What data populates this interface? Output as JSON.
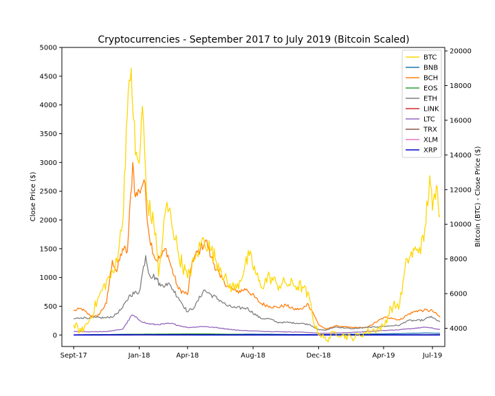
{
  "chart_data": {
    "type": "line",
    "title": "Cryptocurrencies - September 2017 to July 2019 (Bitcoin Scaled)",
    "ylabel": "Close Price ($)",
    "ylabel_right": "Bitcoin (BTC) - Close Price ($)",
    "x_tick_labels": [
      "Sept-17",
      "Jan-18",
      "Apr-18",
      "Aug-18",
      "Dec-18",
      "Apr-19",
      "Jul-19"
    ],
    "x_tick_dates": [
      "2017-09-01",
      "2018-01-01",
      "2018-04-01",
      "2018-08-01",
      "2018-12-01",
      "2019-04-01",
      "2019-07-01"
    ],
    "xlim": [
      "2017-08-10",
      "2019-07-24"
    ],
    "ylim": [
      -200,
      5000
    ],
    "ylim_right": [
      2950,
      20200
    ],
    "yticks": [
      0,
      500,
      1000,
      1500,
      2000,
      2500,
      3000,
      3500,
      4000,
      4500,
      5000
    ],
    "yticks_right": [
      4000,
      6000,
      8000,
      10000,
      12000,
      14000,
      16000,
      18000,
      20000
    ],
    "legend_position": "top-right",
    "series": [
      {
        "name": "BTC",
        "axis": "right",
        "color": "#FFD700",
        "x": [
          "2017-09-01",
          "2017-09-15",
          "2017-10-01",
          "2017-10-15",
          "2017-11-01",
          "2017-11-15",
          "2017-12-01",
          "2017-12-08",
          "2017-12-17",
          "2017-12-25",
          "2018-01-01",
          "2018-01-07",
          "2018-01-15",
          "2018-02-01",
          "2018-02-06",
          "2018-02-20",
          "2018-03-01",
          "2018-03-15",
          "2018-04-01",
          "2018-04-15",
          "2018-05-01",
          "2018-05-15",
          "2018-06-01",
          "2018-06-15",
          "2018-07-01",
          "2018-07-25",
          "2018-08-15",
          "2018-09-01",
          "2018-09-15",
          "2018-10-01",
          "2018-10-15",
          "2018-11-01",
          "2018-11-15",
          "2018-11-25",
          "2018-12-15",
          "2019-01-01",
          "2019-01-15",
          "2019-02-01",
          "2019-02-15",
          "2019-03-01",
          "2019-03-15",
          "2019-04-01",
          "2019-04-15",
          "2019-05-01",
          "2019-05-15",
          "2019-06-01",
          "2019-06-15",
          "2019-06-26",
          "2019-07-01",
          "2019-07-10",
          "2019-07-15"
        ],
        "y": [
          4200,
          3800,
          4500,
          5600,
          6700,
          7200,
          10000,
          15500,
          19000,
          14000,
          13500,
          16800,
          11500,
          9500,
          7000,
          11000,
          10500,
          8300,
          6900,
          8000,
          9200,
          8500,
          7500,
          6500,
          6300,
          8200,
          6400,
          7000,
          6500,
          6600,
          6500,
          6400,
          5600,
          4000,
          3300,
          3800,
          3600,
          3450,
          3600,
          3800,
          3900,
          4100,
          5200,
          5400,
          8000,
          8500,
          9000,
          12800,
          10800,
          12100,
          10500
        ]
      },
      {
        "name": "BNB",
        "axis": "left",
        "color": "#1f77b4",
        "x": [
          "2017-09-01",
          "2018-01-15",
          "2018-04-01",
          "2018-08-01",
          "2018-12-01",
          "2019-04-01",
          "2019-06-20",
          "2019-07-15"
        ],
        "y": [
          2,
          15,
          12,
          15,
          5,
          20,
          35,
          30
        ]
      },
      {
        "name": "BCH",
        "axis": "left",
        "color": "#ff7f0e",
        "x": [
          "2017-09-01",
          "2017-09-15",
          "2017-10-01",
          "2017-10-15",
          "2017-11-01",
          "2017-11-12",
          "2017-11-20",
          "2017-12-01",
          "2017-12-10",
          "2017-12-20",
          "2017-12-25",
          "2018-01-01",
          "2018-01-10",
          "2018-01-20",
          "2018-02-01",
          "2018-02-10",
          "2018-02-20",
          "2018-03-01",
          "2018-03-15",
          "2018-04-01",
          "2018-04-10",
          "2018-04-25",
          "2018-05-05",
          "2018-05-15",
          "2018-06-01",
          "2018-06-15",
          "2018-07-01",
          "2018-07-20",
          "2018-08-15",
          "2018-09-01",
          "2018-09-15",
          "2018-10-01",
          "2018-10-15",
          "2018-11-01",
          "2018-11-10",
          "2018-11-20",
          "2018-12-01",
          "2018-12-15",
          "2019-01-01",
          "2019-02-01",
          "2019-03-01",
          "2019-04-01",
          "2019-04-15",
          "2019-05-01",
          "2019-05-15",
          "2019-06-01",
          "2019-06-15",
          "2019-07-01",
          "2019-07-15"
        ],
        "y": [
          420,
          460,
          340,
          320,
          550,
          1300,
          1100,
          1500,
          1450,
          3000,
          2400,
          2500,
          2700,
          1700,
          1300,
          1350,
          1500,
          1200,
          800,
          700,
          1300,
          1500,
          1650,
          1350,
          1000,
          850,
          750,
          800,
          550,
          500,
          480,
          520,
          450,
          450,
          550,
          400,
          180,
          100,
          160,
          130,
          130,
          300,
          300,
          260,
          350,
          420,
          430,
          420,
          310
        ]
      },
      {
        "name": "EOS",
        "axis": "left",
        "color": "#2ca02c",
        "x": [
          "2017-09-01",
          "2018-01-15",
          "2018-04-29",
          "2018-08-01",
          "2018-12-01",
          "2019-04-01",
          "2019-07-15"
        ],
        "y": [
          1,
          15,
          20,
          8,
          2,
          5,
          5
        ]
      },
      {
        "name": "ETH",
        "axis": "left",
        "color": "#7f7f7f",
        "x": [
          "2017-09-01",
          "2017-09-15",
          "2017-10-01",
          "2017-11-01",
          "2017-11-15",
          "2017-12-01",
          "2017-12-15",
          "2018-01-01",
          "2018-01-13",
          "2018-01-20",
          "2018-02-01",
          "2018-02-10",
          "2018-02-20",
          "2018-03-01",
          "2018-03-15",
          "2018-04-01",
          "2018-04-15",
          "2018-05-01",
          "2018-05-15",
          "2018-06-01",
          "2018-06-15",
          "2018-07-01",
          "2018-07-20",
          "2018-08-15",
          "2018-09-01",
          "2018-09-15",
          "2018-10-01",
          "2018-11-01",
          "2018-11-15",
          "2018-12-01",
          "2018-12-15",
          "2019-01-01",
          "2019-02-01",
          "2019-03-01",
          "2019-04-01",
          "2019-04-15",
          "2019-05-01",
          "2019-05-15",
          "2019-06-01",
          "2019-06-15",
          "2019-06-26",
          "2019-07-01",
          "2019-07-15"
        ],
        "y": [
          280,
          300,
          300,
          300,
          330,
          470,
          700,
          750,
          1380,
          1050,
          1000,
          850,
          900,
          850,
          650,
          400,
          500,
          780,
          700,
          600,
          500,
          470,
          470,
          290,
          280,
          220,
          220,
          200,
          180,
          90,
          85,
          140,
          110,
          130,
          150,
          160,
          170,
          250,
          250,
          260,
          320,
          300,
          230
        ]
      },
      {
        "name": "LINK",
        "axis": "left",
        "color": "#d62728",
        "x": [
          "2017-09-01",
          "2018-06-01",
          "2019-01-01",
          "2019-05-01",
          "2019-06-28",
          "2019-07-15"
        ],
        "y": [
          0,
          0.5,
          0.4,
          1,
          4,
          3
        ]
      },
      {
        "name": "LTC",
        "axis": "left",
        "color": "#9467bd",
        "x": [
          "2017-09-01",
          "2017-10-01",
          "2017-11-01",
          "2017-12-01",
          "2017-12-19",
          "2018-01-01",
          "2018-01-15",
          "2018-02-01",
          "2018-03-01",
          "2018-04-01",
          "2018-05-01",
          "2018-06-01",
          "2018-07-01",
          "2018-08-01",
          "2018-09-01",
          "2018-10-01",
          "2018-11-01",
          "2018-12-01",
          "2019-01-01",
          "2019-02-01",
          "2019-03-01",
          "2019-04-01",
          "2019-05-01",
          "2019-06-01",
          "2019-06-20",
          "2019-07-15"
        ],
        "y": [
          60,
          55,
          60,
          100,
          350,
          260,
          200,
          180,
          200,
          130,
          150,
          120,
          85,
          70,
          60,
          55,
          50,
          30,
          32,
          45,
          60,
          80,
          90,
          120,
          135,
          95
        ]
      },
      {
        "name": "TRX",
        "axis": "left",
        "color": "#8c564b",
        "x": [
          "2017-09-01",
          "2018-01-05",
          "2018-06-01",
          "2019-01-01",
          "2019-07-15"
        ],
        "y": [
          0,
          0.2,
          0.05,
          0.03,
          0.03
        ]
      },
      {
        "name": "XLM",
        "axis": "left",
        "color": "#e377c2",
        "x": [
          "2017-09-01",
          "2018-01-05",
          "2018-06-01",
          "2019-01-01",
          "2019-07-15"
        ],
        "y": [
          0,
          0.8,
          0.3,
          0.1,
          0.1
        ]
      },
      {
        "name": "XRP",
        "axis": "left",
        "color": "#0000cc",
        "x": [
          "2017-09-01",
          "2018-01-05",
          "2018-06-01",
          "2019-01-01",
          "2019-07-15"
        ],
        "y": [
          0.2,
          3,
          0.6,
          0.35,
          0.4
        ]
      }
    ]
  }
}
